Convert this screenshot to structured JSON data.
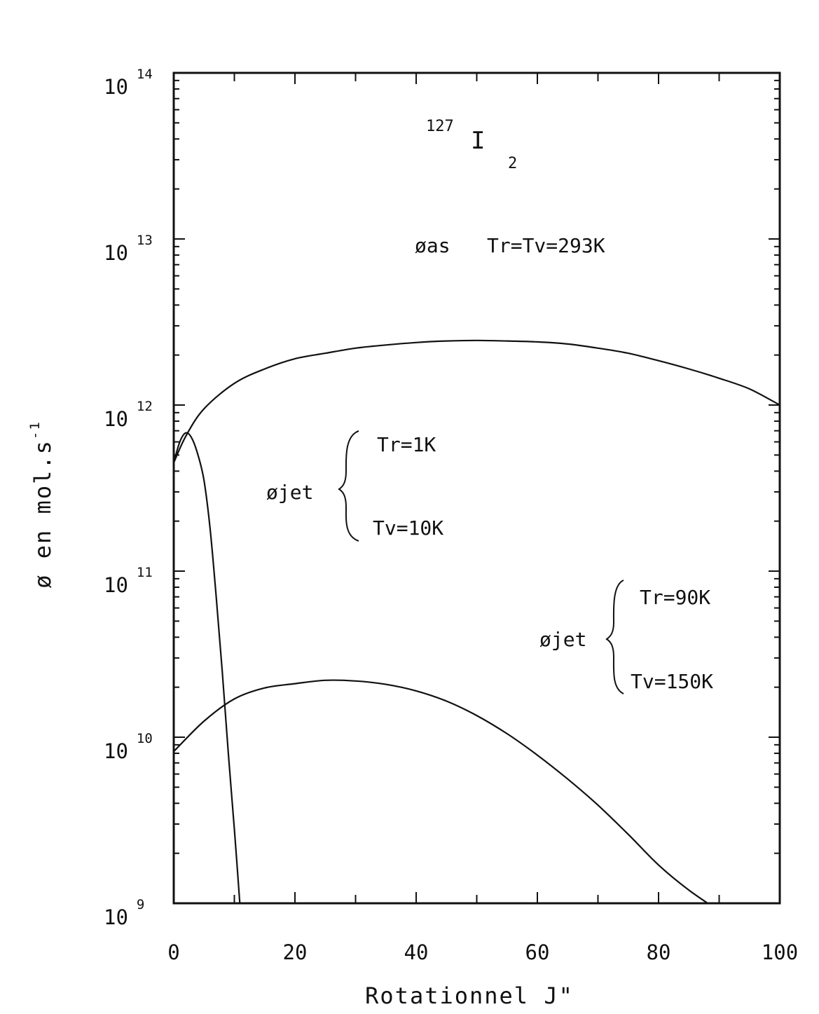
{
  "chart_data": {
    "type": "line",
    "title": "",
    "xlabel": "Rotationnel J\"",
    "ylabel": "ø en mol.s",
    "ylabel_exponent": "-1",
    "xlim": [
      0,
      100
    ],
    "ylim": [
      1000000000.0,
      100000000000000.0
    ],
    "y_scale": "log",
    "x_ticks": [
      0,
      20,
      40,
      60,
      80,
      100
    ],
    "x_tick_labels": [
      "0",
      "20",
      "40",
      "60",
      "80",
      "100"
    ],
    "y_ticks": [
      {
        "base": "10",
        "exp": "9",
        "value": 1000000000.0
      },
      {
        "base": "10",
        "exp": "10",
        "value": 10000000000.0
      },
      {
        "base": "10",
        "exp": "11",
        "value": 100000000000.0
      },
      {
        "base": "10",
        "exp": "12",
        "value": 1000000000000.0
      },
      {
        "base": "10",
        "exp": "13",
        "value": 10000000000000.0
      },
      {
        "base": "10",
        "exp": "14",
        "value": 100000000000000.0
      }
    ],
    "grid": false,
    "series": [
      {
        "x": [
          0,
          2,
          5,
          10,
          15,
          20,
          25,
          30,
          35,
          40,
          45,
          50,
          55,
          60,
          65,
          70,
          75,
          80,
          85,
          90,
          95,
          100
        ],
        "y": [
          450000000000.0,
          650000000000.0,
          950000000000.0,
          1350000000000.0,
          1650000000000.0,
          1900000000000.0,
          2050000000000.0,
          2200000000000.0,
          2300000000000.0,
          2380000000000.0,
          2430000000000.0,
          2450000000000.0,
          2430000000000.0,
          2400000000000.0,
          2330000000000.0,
          2200000000000.0,
          2050000000000.0,
          1850000000000.0,
          1650000000000.0,
          1450000000000.0,
          1250000000000.0,
          1000000000000.0
        ]
      },
      {
        "x": [
          0,
          1,
          2,
          3,
          4,
          5,
          6,
          7,
          8,
          9,
          10,
          11
        ],
        "y": [
          450000000000.0,
          600000000000.0,
          680000000000.0,
          630000000000.0,
          500000000000.0,
          350000000000.0,
          180000000000.0,
          70000000000.0,
          25000000000.0,
          8000000000.0,
          2800000000.0,
          900000000.0
        ]
      },
      {
        "x": [
          0,
          5,
          10,
          15,
          20,
          25,
          30,
          35,
          40,
          45,
          50,
          55,
          60,
          65,
          70,
          75,
          80,
          85,
          90
        ],
        "y": [
          8200000000.0,
          12500000000.0,
          17000000000.0,
          19800000000.0,
          21000000000.0,
          22000000000.0,
          21800000000.0,
          20800000000.0,
          19000000000.0,
          16500000000.0,
          13500000000.0,
          10500000000.0,
          7800000000.0,
          5600000000.0,
          3900000000.0,
          2600000000.0,
          1700000000.0,
          1200000000.0,
          900000000.0
        ]
      }
    ],
    "annotations": {
      "molecule_mass": "127",
      "molecule_symbol": "I",
      "molecule_subscript": "2",
      "flux_as": "øas",
      "temp_as": "Tr=Tv=293K",
      "jet1_label": "øjet",
      "jet1_tr": "Tr=1K",
      "jet1_tv": "Tv=10K",
      "jet2_label": "øjet",
      "jet2_tr": "Tr=90K",
      "jet2_tv": "Tv=150K"
    }
  }
}
